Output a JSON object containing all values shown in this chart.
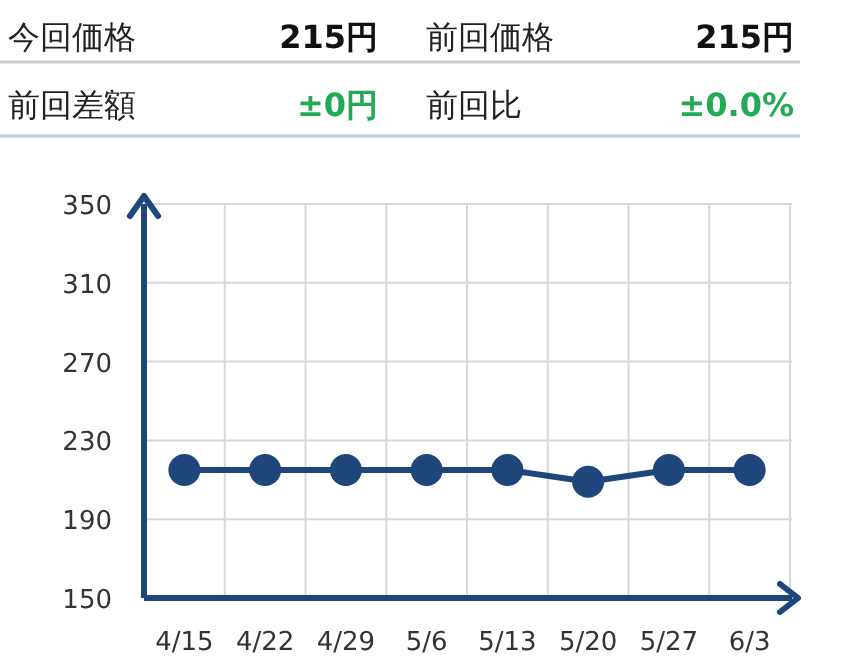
{
  "chart_data": [
    {
      "type": "other",
      "annotations": [
        "今回価格",
        "215円",
        "前回価格",
        "215円",
        "前回差額",
        "±0円",
        "前回比",
        "±0.0%"
      ],
      "colors": [
        "#222222",
        "#111111",
        "#222222",
        "#111111",
        "#222222",
        "#22aa55",
        "#222222",
        "#22aa55"
      ]
    },
    {
      "type": "line",
      "categories": [
        "4/15",
        "4/22",
        "4/29",
        "5/6",
        "5/13",
        "5/20",
        "5/27",
        "6/3"
      ],
      "series": [
        {
          "color": "#1f467a",
          "values": [
            215,
            215,
            215,
            215,
            215,
            209,
            215,
            215
          ]
        }
      ],
      "ylim": [
        150,
        350
      ],
      "yticks": [
        150,
        190,
        230,
        270,
        310,
        350
      ],
      "grid": true,
      "marker": "circle",
      "line_style": "solid"
    }
  ]
}
